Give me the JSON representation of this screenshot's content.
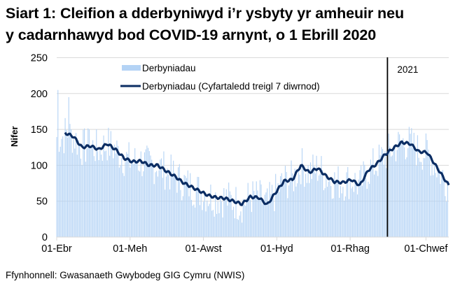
{
  "title_line1": "Siart 1: Cleifion a dderbyniwyd i’r ysbyty yr amheuir neu",
  "title_line2": "y cadarnhawyd bod COVID-19 arnynt, o 1 Ebrill 2020",
  "source": "Ffynhonnell: Gwasanaeth Gwybodeg GIG Cymru (NWIS)",
  "colors": {
    "bars": "#b4d3f5",
    "line": "#0b2d63",
    "marker": "#000000",
    "grid": "#d9d9d9"
  },
  "chart_data": {
    "type": "bar+line",
    "title": "Siart 1: Cleifion a dderbyniwyd i’r ysbyty yr amheuir neu y cadarnhawyd bod COVID-19 arnynt, o 1 Ebrill 2020",
    "xlabel": "",
    "ylabel": "Nifer",
    "ylim": [
      0,
      250
    ],
    "yticks": [
      0,
      50,
      100,
      150,
      200,
      250
    ],
    "xtick_labels": [
      "01-Ebr",
      "01-Meh",
      "01-Awst",
      "01-Hyd",
      "01-Rhag",
      "01-Chwef"
    ],
    "grid": true,
    "legend": [
      "Derbyniadau",
      "Derbyniadau  (Cyfartaledd treigl 7 diwrnod)"
    ],
    "legend_position": "top",
    "annotation": {
      "label": "2021",
      "x_day": 275
    },
    "start_date": "2020-04-01",
    "series": [
      {
        "name": "Derbyniadau  (Cyfartaledd treigl 7 diwrnod)",
        "type": "line",
        "x_day": [
          7,
          10,
          14,
          21,
          28,
          35,
          42,
          49,
          56,
          63,
          70,
          77,
          84,
          91,
          98,
          105,
          112,
          119,
          126,
          133,
          140,
          147,
          154,
          161,
          168,
          175,
          182,
          189,
          196,
          203,
          210,
          217,
          224,
          231,
          238,
          245,
          252,
          259,
          266,
          273,
          280,
          287,
          294,
          301,
          308,
          315,
          322,
          326
        ],
        "values": [
          145,
          143,
          140,
          125,
          127,
          122,
          130,
          122,
          110,
          105,
          106,
          100,
          100,
          92,
          85,
          76,
          70,
          64,
          58,
          55,
          54,
          50,
          46,
          56,
          55,
          45,
          62,
          78,
          80,
          100,
          90,
          96,
          85,
          77,
          76,
          80,
          72,
          93,
          102,
          115,
          124,
          132,
          130,
          119,
          118,
          100,
          82,
          72
        ]
      },
      {
        "name": "Derbyniadau",
        "type": "bar",
        "note": "daily values, approximated",
        "weekly_range_hint": "daily bars fluctuate roughly ±30 around the 7-day average; peaks near 195 (early Apr) and ~155 (late Dec/early Jan)"
      }
    ]
  }
}
